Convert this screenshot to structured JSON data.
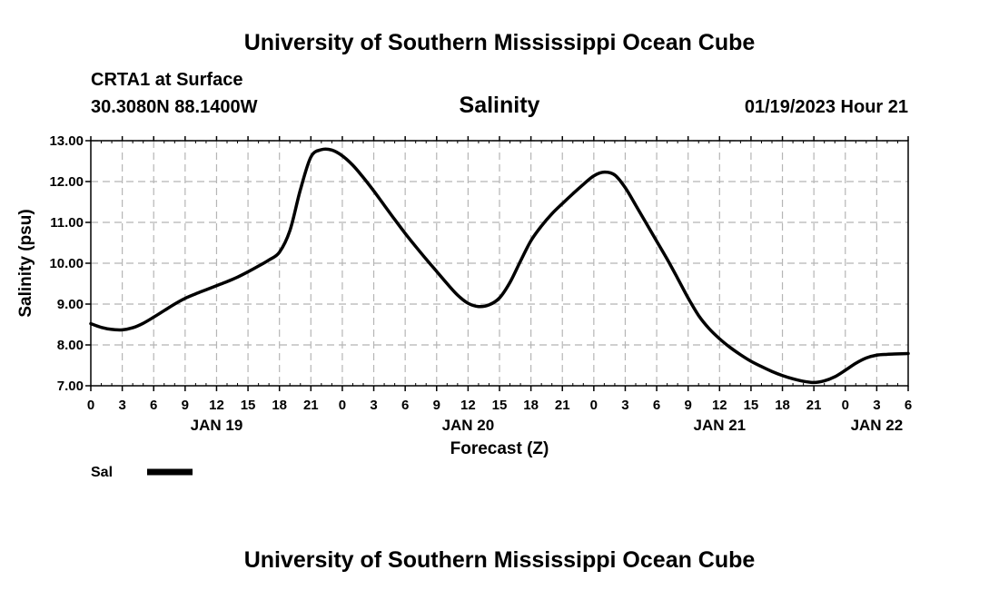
{
  "header": {
    "title": "University of Southern Mississippi Ocean Cube",
    "station": "CRTA1 at Surface",
    "coords": "30.3080N  88.1400W",
    "datetime": "01/19/2023 Hour 21"
  },
  "footer": {
    "title": "University of Southern Mississippi Ocean Cube"
  },
  "chart_data": {
    "type": "line",
    "title": "Salinity",
    "xlabel": "Forecast (Z)",
    "ylabel": "Salinity (psu)",
    "xlim": [
      0,
      78
    ],
    "ylim": [
      7.0,
      13.0
    ],
    "grid": true,
    "x_ticks_hours": [
      0,
      3,
      6,
      9,
      12,
      15,
      18,
      21,
      24,
      27,
      30,
      33,
      36,
      39,
      42,
      45,
      48,
      51,
      54,
      57,
      60,
      63,
      66,
      69,
      72,
      75,
      78
    ],
    "x_tick_labels": [
      "0",
      "3",
      "6",
      "9",
      "12",
      "15",
      "18",
      "21",
      "0",
      "3",
      "6",
      "9",
      "12",
      "15",
      "18",
      "21",
      "0",
      "3",
      "6",
      "9",
      "12",
      "15",
      "18",
      "21",
      "0",
      "3",
      "6"
    ],
    "y_ticks": [
      7.0,
      8.0,
      9.0,
      10.0,
      11.0,
      12.0,
      13.0
    ],
    "y_tick_labels": [
      "7.00",
      "8.00",
      "9.00",
      "10.00",
      "11.00",
      "12.00",
      "13.00"
    ],
    "day_labels": [
      {
        "label": "JAN 19",
        "hour": 12
      },
      {
        "label": "JAN 20",
        "hour": 36
      },
      {
        "label": "JAN 21",
        "hour": 60
      },
      {
        "label": "JAN 22",
        "hour": 75
      }
    ],
    "legend": [
      {
        "name": "Sal",
        "color": "#000000"
      }
    ],
    "series": [
      {
        "name": "Sal",
        "color": "#000000",
        "x": [
          0,
          1,
          2,
          3,
          4,
          5,
          6,
          7,
          8,
          9,
          10,
          11,
          12,
          13,
          14,
          15,
          16,
          17,
          18,
          19,
          20,
          21,
          22,
          23,
          24,
          25,
          26,
          27,
          28,
          29,
          30,
          31,
          32,
          33,
          34,
          35,
          36,
          37,
          38,
          39,
          40,
          41,
          42,
          43,
          44,
          45,
          46,
          47,
          48,
          49,
          50,
          51,
          52,
          53,
          54,
          55,
          56,
          57,
          58,
          59,
          60,
          61,
          62,
          63,
          64,
          65,
          66,
          67,
          68,
          69,
          70,
          71,
          72,
          73,
          74,
          75,
          76,
          77,
          78
        ],
        "values": [
          8.52,
          8.43,
          8.38,
          8.37,
          8.42,
          8.53,
          8.68,
          8.84,
          9.0,
          9.14,
          9.25,
          9.35,
          9.45,
          9.55,
          9.66,
          9.79,
          9.93,
          10.08,
          10.27,
          10.8,
          11.8,
          12.6,
          12.78,
          12.77,
          12.63,
          12.4,
          12.1,
          11.77,
          11.42,
          11.07,
          10.73,
          10.41,
          10.1,
          9.8,
          9.5,
          9.22,
          9.02,
          8.94,
          8.98,
          9.15,
          9.53,
          10.05,
          10.55,
          10.91,
          11.21,
          11.46,
          11.7,
          11.93,
          12.14,
          12.23,
          12.16,
          11.85,
          11.42,
          10.98,
          10.54,
          10.1,
          9.63,
          9.15,
          8.72,
          8.4,
          8.15,
          7.94,
          7.76,
          7.6,
          7.47,
          7.35,
          7.25,
          7.17,
          7.11,
          7.08,
          7.12,
          7.22,
          7.38,
          7.55,
          7.68,
          7.75,
          7.77,
          7.78,
          7.79
        ]
      }
    ]
  }
}
